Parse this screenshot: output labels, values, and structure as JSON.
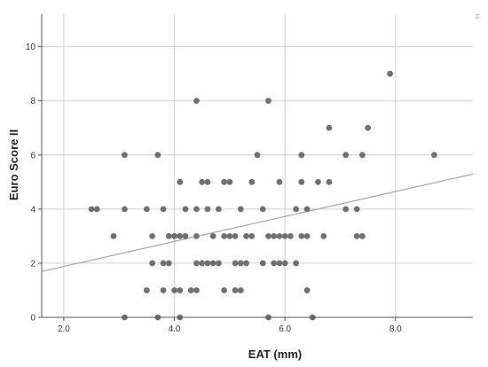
{
  "chart_data": {
    "type": "scatter",
    "xlabel": "EAT (mm)",
    "ylabel": "Euro Score II",
    "corner_mark": "F",
    "xlim": [
      1.6,
      9.4
    ],
    "ylim": [
      0,
      11.2
    ],
    "x_ticks": [
      {
        "value": 2,
        "label": "2.0"
      },
      {
        "value": 4,
        "label": "4.0"
      },
      {
        "value": 6,
        "label": "6.0"
      },
      {
        "value": 8,
        "label": "8.0"
      }
    ],
    "y_ticks": [
      {
        "value": 0,
        "label": "0"
      },
      {
        "value": 2,
        "label": "2"
      },
      {
        "value": 4,
        "label": "4"
      },
      {
        "value": 6,
        "label": "6"
      },
      {
        "value": 8,
        "label": "8"
      },
      {
        "value": 10,
        "label": "10"
      }
    ],
    "grid": true,
    "colors": {
      "point": "#707070",
      "line": "#a6a6a6",
      "grid": "#d0d0d0",
      "axis": "#555555"
    },
    "points": [
      [
        2.5,
        4
      ],
      [
        2.6,
        4
      ],
      [
        2.9,
        3
      ],
      [
        3.1,
        6
      ],
      [
        3.1,
        4
      ],
      [
        3.1,
        0
      ],
      [
        3.5,
        4
      ],
      [
        3.5,
        1
      ],
      [
        3.6,
        3
      ],
      [
        3.6,
        2
      ],
      [
        3.7,
        6
      ],
      [
        3.7,
        0
      ],
      [
        3.8,
        4
      ],
      [
        3.8,
        2
      ],
      [
        3.8,
        1
      ],
      [
        3.9,
        3
      ],
      [
        3.9,
        2
      ],
      [
        4.0,
        3
      ],
      [
        4.0,
        1
      ],
      [
        4.1,
        5
      ],
      [
        4.1,
        3
      ],
      [
        4.1,
        1
      ],
      [
        4.1,
        0
      ],
      [
        4.2,
        3
      ],
      [
        4.2,
        4
      ],
      [
        4.3,
        1
      ],
      [
        4.4,
        3
      ],
      [
        4.4,
        1
      ],
      [
        4.4,
        8
      ],
      [
        4.4,
        4
      ],
      [
        4.4,
        2
      ],
      [
        4.5,
        5
      ],
      [
        4.5,
        2
      ],
      [
        4.6,
        5
      ],
      [
        4.6,
        4
      ],
      [
        4.6,
        2
      ],
      [
        4.7,
        3
      ],
      [
        4.7,
        2
      ],
      [
        4.8,
        4
      ],
      [
        4.8,
        2
      ],
      [
        4.9,
        5
      ],
      [
        4.9,
        3
      ],
      [
        4.9,
        1
      ],
      [
        5.0,
        5
      ],
      [
        5.0,
        3
      ],
      [
        5.1,
        3
      ],
      [
        5.1,
        2
      ],
      [
        5.1,
        1
      ],
      [
        5.2,
        4
      ],
      [
        5.2,
        2
      ],
      [
        5.2,
        1
      ],
      [
        5.3,
        3
      ],
      [
        5.3,
        2
      ],
      [
        5.4,
        3
      ],
      [
        5.4,
        5
      ],
      [
        5.5,
        6
      ],
      [
        5.6,
        4
      ],
      [
        5.6,
        2
      ],
      [
        5.7,
        8
      ],
      [
        5.7,
        0
      ],
      [
        5.7,
        3
      ],
      [
        5.8,
        3
      ],
      [
        5.8,
        2
      ],
      [
        5.9,
        5
      ],
      [
        5.9,
        3
      ],
      [
        5.9,
        2
      ],
      [
        6.0,
        3
      ],
      [
        6.0,
        2
      ],
      [
        6.1,
        3
      ],
      [
        6.2,
        2
      ],
      [
        6.2,
        4
      ],
      [
        6.3,
        6
      ],
      [
        6.3,
        5
      ],
      [
        6.3,
        3
      ],
      [
        6.4,
        3
      ],
      [
        6.4,
        1
      ],
      [
        6.4,
        4
      ],
      [
        6.5,
        0
      ],
      [
        6.6,
        5
      ],
      [
        6.7,
        3
      ],
      [
        6.8,
        5
      ],
      [
        6.8,
        7
      ],
      [
        7.1,
        4
      ],
      [
        7.1,
        6
      ],
      [
        7.3,
        4
      ],
      [
        7.3,
        3
      ],
      [
        7.4,
        3
      ],
      [
        7.4,
        6
      ],
      [
        7.5,
        7
      ],
      [
        7.9,
        9
      ],
      [
        8.7,
        6
      ]
    ],
    "fit_line": {
      "slope": 0.461,
      "intercept": 0.96
    }
  }
}
